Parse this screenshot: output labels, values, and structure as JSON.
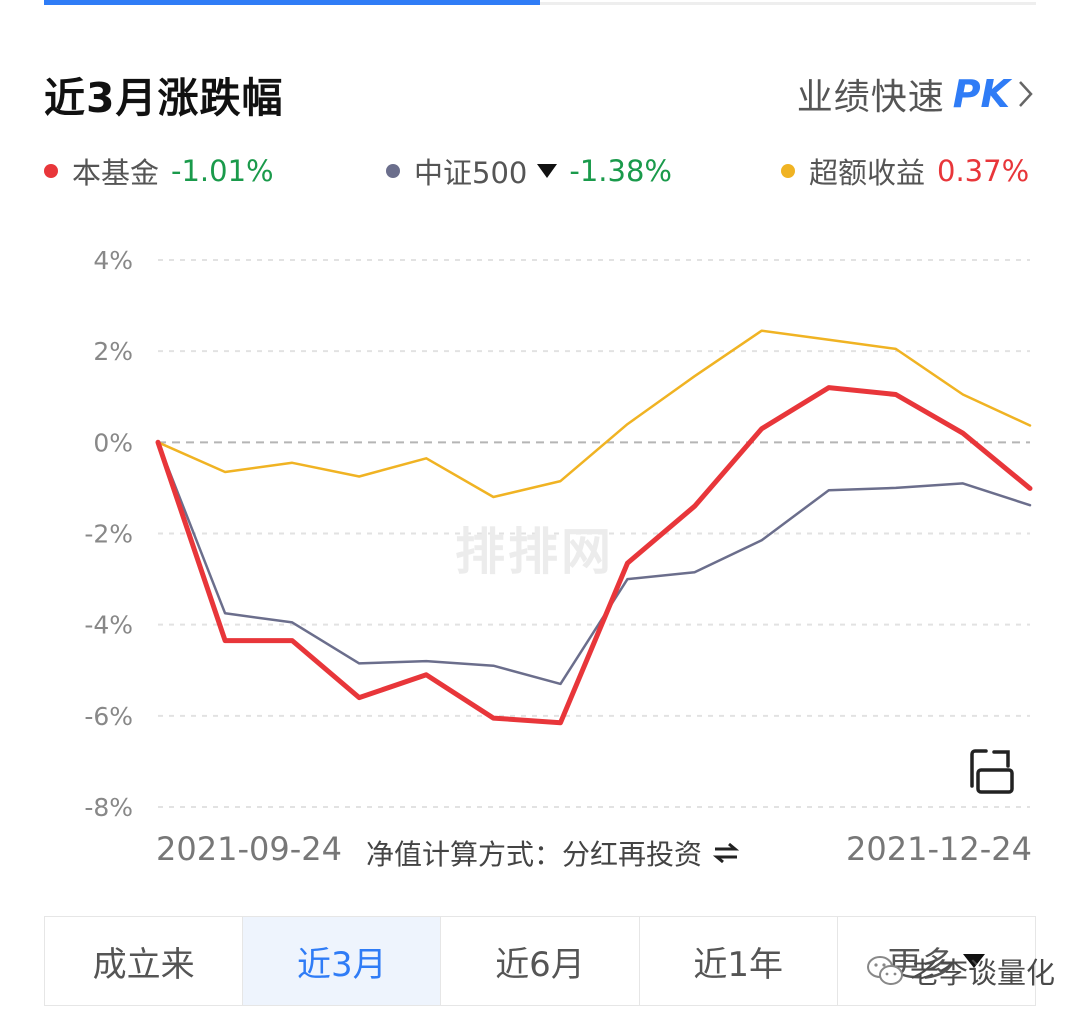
{
  "header": {
    "title": "近3月涨跌幅",
    "pk_text": "业绩快速",
    "pk_badge": "PK"
  },
  "legend": [
    {
      "label": "本基金",
      "value": "-1.01%",
      "dot_color": "#e8363a",
      "value_color": "#1a9a4b",
      "has_dropdown": false
    },
    {
      "label": "中证500",
      "value": "-1.38%",
      "dot_color": "#6b6e8c",
      "value_color": "#1a9a4b",
      "has_dropdown": true
    },
    {
      "label": "超额收益",
      "value": "0.37%",
      "dot_color": "#f0b323",
      "value_color": "#e8363a",
      "has_dropdown": false
    }
  ],
  "chart_data": {
    "type": "line",
    "x_start_label": "2021-09-24",
    "x_end_label": "2021-12-24",
    "y_ticks": [
      "4%",
      "2%",
      "0%",
      "-2%",
      "-4%",
      "-6%",
      "-8%"
    ],
    "ylim": [
      -8,
      4
    ],
    "grid": true,
    "series": [
      {
        "name": "本基金",
        "color": "#e8363a",
        "values": [
          0,
          -4.35,
          -4.35,
          -5.6,
          -5.1,
          -6.05,
          -6.15,
          -2.65,
          -1.4,
          0.3,
          1.2,
          1.05,
          0.2,
          -1.01
        ]
      },
      {
        "name": "中证500",
        "color": "#6b6e8c",
        "values": [
          0,
          -3.75,
          -3.95,
          -4.85,
          -4.8,
          -4.9,
          -5.3,
          -3.0,
          -2.85,
          -2.15,
          -1.05,
          -1.0,
          -0.9,
          -1.38
        ]
      },
      {
        "name": "超额收益",
        "color": "#f0b323",
        "values": [
          0,
          -0.65,
          -0.45,
          -0.75,
          -0.35,
          -1.2,
          -0.85,
          0.4,
          1.45,
          2.45,
          2.25,
          2.05,
          1.05,
          0.37
        ]
      }
    ]
  },
  "footer": {
    "calc_method": "净值计算方式：分红再投资"
  },
  "watermark": "排排网",
  "range_tabs": [
    {
      "label": "成立来",
      "active": false
    },
    {
      "label": "近3月",
      "active": true
    },
    {
      "label": "近6月",
      "active": false
    },
    {
      "label": "近1年",
      "active": false
    },
    {
      "label": "更多",
      "active": false
    }
  ],
  "wechat_account": "老李谈量化"
}
